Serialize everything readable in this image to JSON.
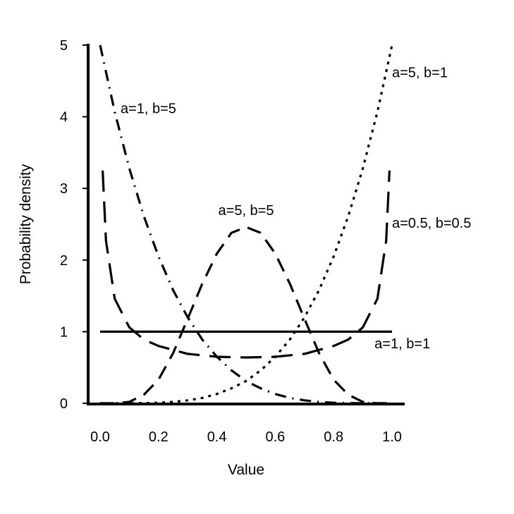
{
  "chart_data": {
    "type": "line",
    "title": "",
    "xlabel": "Value",
    "ylabel": "Probability density",
    "xlim": [
      0,
      1
    ],
    "ylim": [
      0,
      5
    ],
    "xticks": [
      "0.0",
      "0.2",
      "0.4",
      "0.6",
      "0.8",
      "1.0"
    ],
    "yticks": [
      "0",
      "1",
      "2",
      "3",
      "4",
      "5"
    ],
    "grid": false,
    "legend": "none (curves labeled directly)",
    "series": [
      {
        "label": "a=1, b=1",
        "line_style": "solid",
        "x": [
          0.0,
          0.1,
          0.2,
          0.3,
          0.4,
          0.5,
          0.6,
          0.7,
          0.8,
          0.9,
          1.0
        ],
        "y": [
          1,
          1,
          1,
          1,
          1,
          1,
          1,
          1,
          1,
          1,
          1
        ]
      },
      {
        "label": "a=1, b=5",
        "line_style": "dash-dot",
        "x": [
          0.0,
          0.05,
          0.1,
          0.15,
          0.2,
          0.25,
          0.3,
          0.35,
          0.4,
          0.45,
          0.5,
          0.55,
          0.6,
          0.65,
          0.7,
          0.75,
          0.8,
          0.85,
          0.9,
          0.95,
          1.0
        ],
        "y": [
          5.0,
          4.07,
          3.28,
          2.61,
          2.05,
          1.58,
          1.2,
          0.89,
          0.65,
          0.46,
          0.31,
          0.21,
          0.13,
          0.075,
          0.041,
          0.02,
          0.008,
          0.0025,
          0.0005,
          0.0,
          0.0
        ]
      },
      {
        "label": "a=5, b=1",
        "line_style": "dotted",
        "x": [
          0.0,
          0.05,
          0.1,
          0.15,
          0.2,
          0.25,
          0.3,
          0.35,
          0.4,
          0.45,
          0.5,
          0.55,
          0.6,
          0.65,
          0.7,
          0.75,
          0.8,
          0.85,
          0.9,
          0.95,
          1.0
        ],
        "y": [
          0.0,
          0.0,
          0.0005,
          0.0025,
          0.008,
          0.02,
          0.041,
          0.075,
          0.13,
          0.21,
          0.31,
          0.46,
          0.65,
          0.89,
          1.2,
          1.58,
          2.05,
          2.61,
          3.28,
          4.07,
          5.0
        ]
      },
      {
        "label": "a=5, b=5",
        "line_style": "dashed",
        "x": [
          0.0,
          0.05,
          0.1,
          0.15,
          0.2,
          0.25,
          0.3,
          0.35,
          0.4,
          0.45,
          0.5,
          0.55,
          0.6,
          0.65,
          0.7,
          0.75,
          0.8,
          0.85,
          0.9,
          0.95,
          1.0
        ],
        "y": [
          0.0,
          0.0,
          0.02,
          0.12,
          0.33,
          0.7,
          1.18,
          1.67,
          2.09,
          2.38,
          2.46,
          2.38,
          2.09,
          1.67,
          1.18,
          0.7,
          0.33,
          0.12,
          0.02,
          0.0,
          0.0
        ]
      },
      {
        "label": "a=0.5, b=0.5",
        "line_style": "long-dash",
        "x": [
          0.0086,
          0.02,
          0.05,
          0.1,
          0.15,
          0.2,
          0.3,
          0.4,
          0.5,
          0.6,
          0.7,
          0.8,
          0.85,
          0.9,
          0.95,
          0.98,
          0.9914
        ],
        "y": [
          3.25,
          2.27,
          1.46,
          1.06,
          0.89,
          0.8,
          0.69,
          0.65,
          0.64,
          0.65,
          0.69,
          0.8,
          0.89,
          1.06,
          1.46,
          2.27,
          3.25
        ]
      }
    ],
    "annotations": [
      {
        "text": "a=1, b=5",
        "x": 0.07,
        "y": 4.05,
        "anchor": "start"
      },
      {
        "text": "a=5, b=1",
        "x": 1.0,
        "y": 4.55,
        "anchor": "start"
      },
      {
        "text": "a=5, b=5",
        "x": 0.5,
        "y": 2.63,
        "anchor": "middle"
      },
      {
        "text": "a=0.5, b=0.5",
        "x": 1.0,
        "y": 2.45,
        "anchor": "start"
      },
      {
        "text": "a=1, b=1",
        "x": 0.94,
        "y": 0.77,
        "anchor": "start"
      }
    ]
  }
}
